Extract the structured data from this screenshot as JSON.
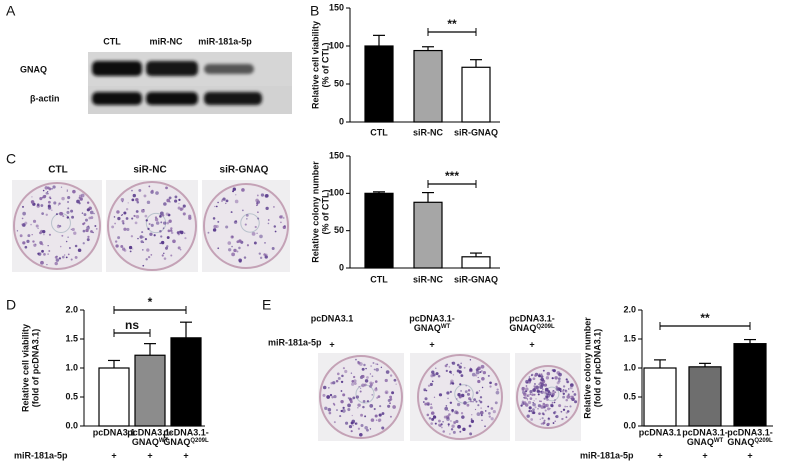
{
  "panel_labels": [
    "A",
    "B",
    "C",
    "D",
    "E"
  ],
  "blot": {
    "lanes": [
      "CTL",
      "miR-NC",
      "miR-181a-5p"
    ],
    "rows": [
      "GNAQ",
      "β-actin"
    ]
  },
  "colony_c": {
    "labels": [
      "CTL",
      "siR-NC",
      "siR-GNAQ"
    ]
  },
  "colony_e": {
    "labels": [
      [
        "pcDNA3.1"
      ],
      [
        "pcDNA3.1-",
        "GNAQ",
        "WT"
      ],
      [
        "pcDNA3.1-",
        "GNAQ",
        "Q209L"
      ]
    ],
    "row_label": "miR-181a-5p",
    "row_marks": [
      "+",
      "+",
      "+"
    ]
  },
  "chart_data": [
    {
      "type": "bar",
      "ylabel": [
        "Relative cell viability",
        "(% of CTL)"
      ],
      "categories": [
        "CTL",
        "siR-NC",
        "siR-GNAQ"
      ],
      "values": [
        100,
        94,
        72
      ],
      "errors": [
        14,
        5,
        10
      ],
      "colors": [
        "#000000",
        "#a6a6a6",
        "#ffffff"
      ],
      "ylim": [
        0,
        150
      ],
      "yticks": [
        0,
        50,
        100,
        150
      ],
      "annotations": [
        "**"
      ]
    },
    {
      "type": "bar",
      "ylabel": [
        "Relative colony number",
        "(% of CTL)"
      ],
      "categories": [
        "CTL",
        "siR-NC",
        "siR-GNAQ"
      ],
      "values": [
        100,
        88,
        15
      ],
      "errors": [
        2,
        13,
        5
      ],
      "colors": [
        "#000000",
        "#a6a6a6",
        "#ffffff"
      ],
      "ylim": [
        0,
        150
      ],
      "yticks": [
        0,
        50,
        100,
        150
      ],
      "annotations": [
        "***"
      ]
    },
    {
      "type": "bar",
      "ylabel": [
        "Relative cell viability",
        "(fold of pcDNA3.1)"
      ],
      "categories": [
        [
          "pcDNA3.1"
        ],
        [
          "pcDNA3.1-",
          "GNAQ",
          "WT"
        ],
        [
          "pcDNA3.1-",
          "GNAQ",
          "Q209L"
        ]
      ],
      "values": [
        1.0,
        1.22,
        1.52
      ],
      "errors": [
        0.13,
        0.2,
        0.27
      ],
      "colors": [
        "#ffffff",
        "#8c8c8c",
        "#000000"
      ],
      "ylim": [
        0,
        2
      ],
      "yticks": [
        {
          "value": 0,
          "label": "0.0"
        },
        0.5,
        {
          "value": 1,
          "label": "1.0"
        },
        1.5,
        {
          "value": 2,
          "label": "2.0"
        }
      ],
      "annotations": [
        "ns",
        "*"
      ],
      "row_label": "miR-181a-5p",
      "row_marks": [
        "+",
        "+",
        "+"
      ]
    },
    {
      "type": "bar",
      "ylabel": [
        "Relative colony number",
        "(fold of pcDNA3.1)"
      ],
      "categories": [
        [
          "pcDNA3.1"
        ],
        [
          "pcDNA3.1-",
          "GNAQ",
          "WT"
        ],
        [
          "pcDNA3.1-",
          "GNAQ",
          "Q209L"
        ]
      ],
      "values": [
        1.0,
        1.02,
        1.42
      ],
      "errors": [
        0.14,
        0.06,
        0.07
      ],
      "colors": [
        "#ffffff",
        "#6e6e6e",
        "#000000"
      ],
      "ylim": [
        0,
        2
      ],
      "yticks": [
        {
          "value": 0,
          "label": "0.0"
        },
        0.5,
        {
          "value": 1,
          "label": "1.0"
        },
        1.5,
        {
          "value": 2,
          "label": "2.0"
        }
      ],
      "annotations": [
        "**"
      ],
      "row_label": "miR-181a-5p",
      "row_marks": [
        "+",
        "+",
        "+"
      ]
    }
  ]
}
